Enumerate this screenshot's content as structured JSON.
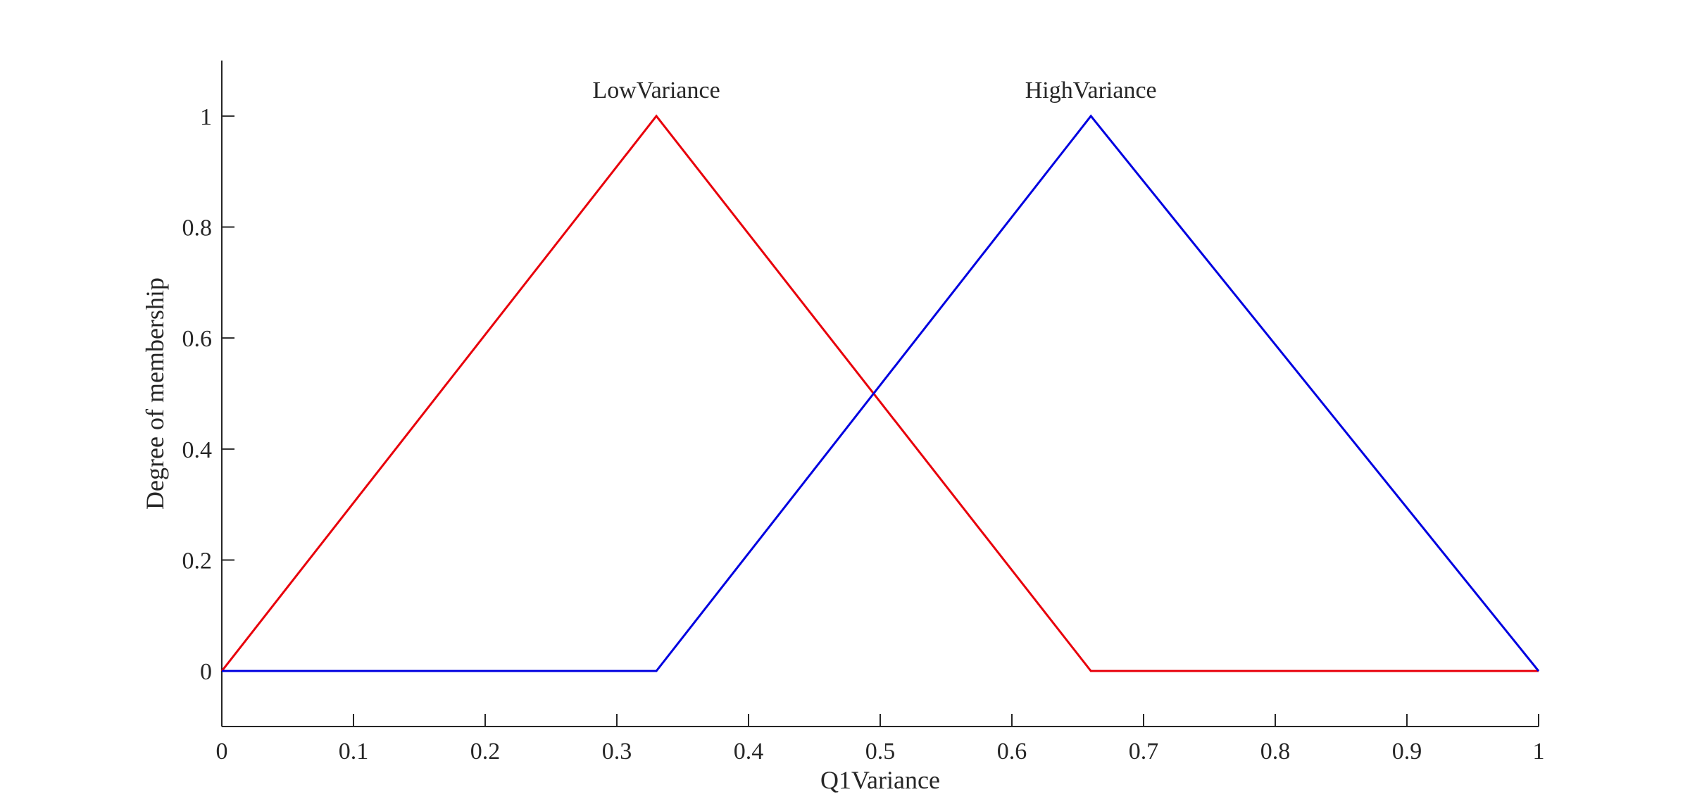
{
  "chart_data": {
    "type": "line",
    "title": "",
    "xlabel": "Q1Variance",
    "ylabel": "Degree of membership",
    "xlim": [
      0,
      1
    ],
    "ylim": [
      -0.1,
      1.1
    ],
    "xticks": [
      0,
      0.1,
      0.2,
      0.3,
      0.4,
      0.5,
      0.6,
      0.7,
      0.8,
      0.9,
      1
    ],
    "xtick_labels": [
      "0",
      "0.1",
      "0.2",
      "0.3",
      "0.4",
      "0.5",
      "0.6",
      "0.7",
      "0.8",
      "0.9",
      "1"
    ],
    "yticks": [
      0,
      0.2,
      0.4,
      0.6,
      0.8,
      1
    ],
    "ytick_labels": [
      "0",
      "0.2",
      "0.4",
      "0.6",
      "0.8",
      "1"
    ],
    "grid": false,
    "legend": "none",
    "series": [
      {
        "name": "LowVariance",
        "color": "#e8000b",
        "x": [
          0,
          0.33,
          0.66,
          1
        ],
        "y": [
          0,
          1,
          0,
          0
        ]
      },
      {
        "name": "HighVariance",
        "color": "#0000e0",
        "x": [
          0,
          0.33,
          0.66,
          1
        ],
        "y": [
          0,
          0,
          1,
          0
        ]
      }
    ]
  }
}
